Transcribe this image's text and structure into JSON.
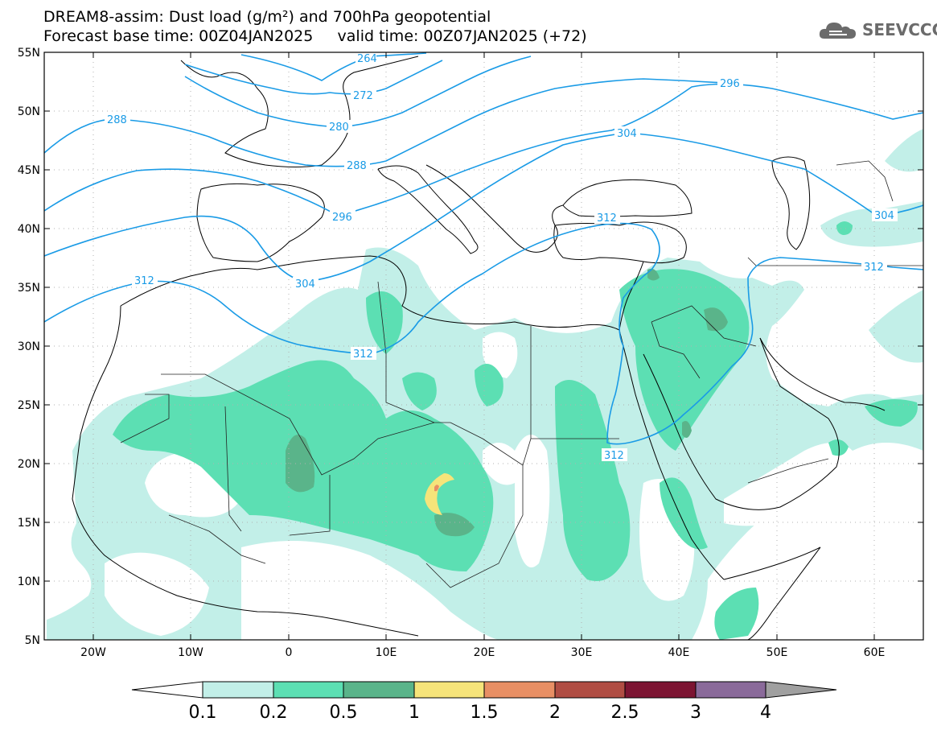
{
  "header": {
    "line1": "DREAM8-assim: Dust load (g/m²) and 700hPa geopotential",
    "line2": "Forecast base time: 00Z04JAN2025     valid time: 00Z07JAN2025 (+72)"
  },
  "logo": {
    "text": "SEEVCCC",
    "icon": "cloud-icon"
  },
  "map": {
    "lat_labels": [
      "55N",
      "50N",
      "45N",
      "40N",
      "35N",
      "30N",
      "25N",
      "20N",
      "15N",
      "10N",
      "5N"
    ],
    "lon_labels": [
      "20W",
      "10W",
      "0",
      "10E",
      "20E",
      "30E",
      "40E",
      "50E",
      "60E"
    ],
    "contour_labels": [
      "264",
      "272",
      "280",
      "288",
      "288",
      "296",
      "296",
      "304",
      "304",
      "304",
      "312",
      "312",
      "312",
      "312",
      "312"
    ],
    "colors": {
      "contour": "#1a9be6"
    }
  },
  "colorbar": {
    "labels": [
      "0.1",
      "0.2",
      "0.5",
      "1",
      "1.5",
      "2",
      "2.5",
      "3",
      "4"
    ],
    "colors": [
      "#ffffff",
      "#c2efe8",
      "#5cdfb3",
      "#5ab48a",
      "#f6e47a",
      "#e88f64",
      "#b04d43",
      "#7c1432",
      "#8a6a9a",
      "#a0a0a0"
    ]
  }
}
